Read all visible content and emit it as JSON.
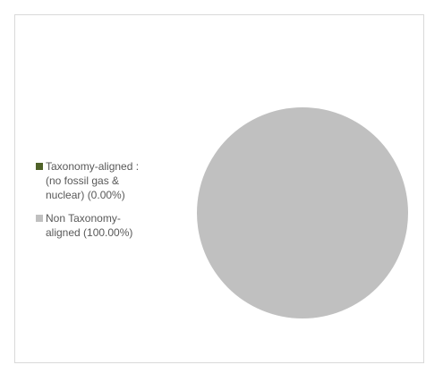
{
  "chart_data": {
    "type": "pie",
    "title": "",
    "slices": [
      {
        "label": "Taxonomy-aligned :\n(no fossil gas &\nnuclear) (0.00%)",
        "value": 0.0,
        "color": "#4f6228"
      },
      {
        "label": "Non Taxonomy-\naligned (100.00%)",
        "value": 100.0,
        "color": "#c0c0c0"
      }
    ],
    "legend_position": "left",
    "border_color": "#d9d9d9"
  }
}
